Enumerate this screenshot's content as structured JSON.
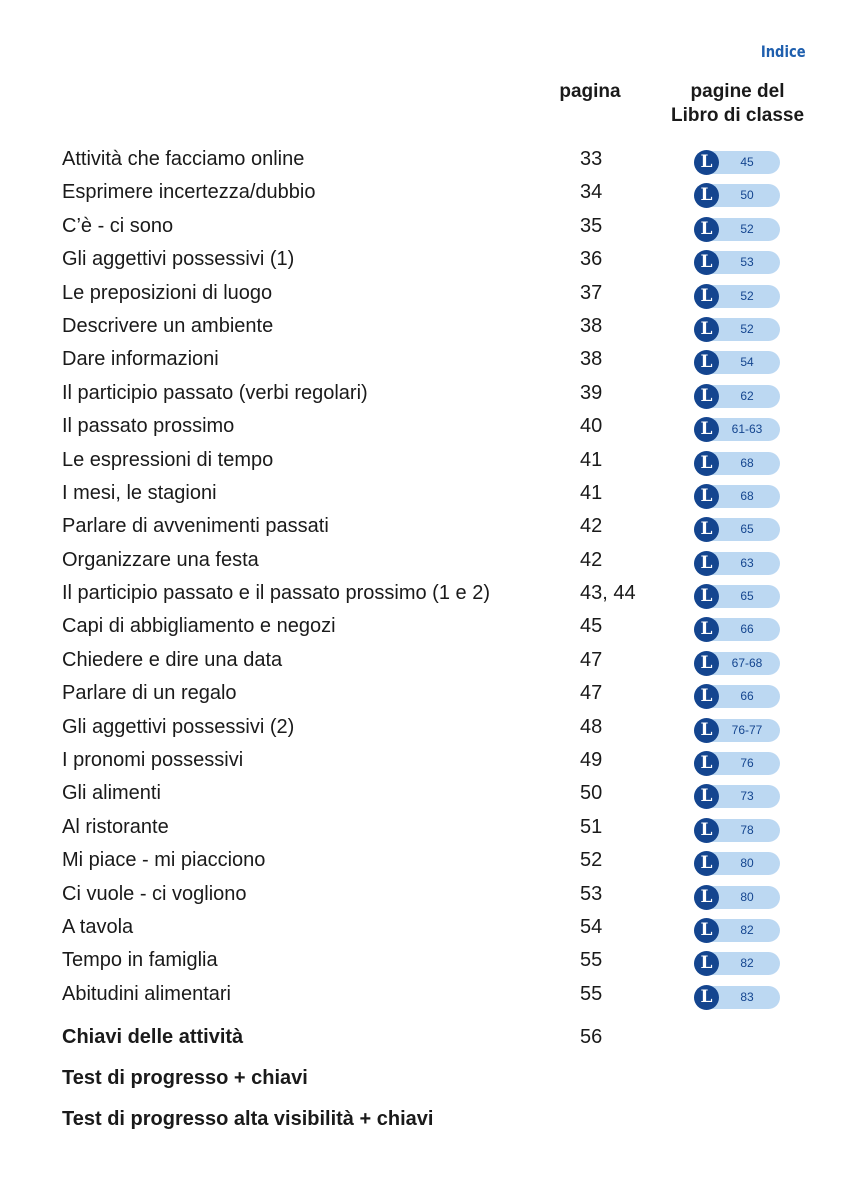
{
  "header": {
    "section_label": "Indice",
    "col_pagina": "pagina",
    "col_libro_line1": "pagine del",
    "col_libro_line2": "Libro di classe",
    "logo_letter": "L"
  },
  "entries": [
    {
      "title": "Attività che facciamo online",
      "page": "33",
      "libro": "45"
    },
    {
      "title": "Esprimere incertezza/dubbio",
      "page": "34",
      "libro": "50"
    },
    {
      "title": "C’è - ci sono",
      "page": "35",
      "libro": "52"
    },
    {
      "title": "Gli aggettivi possessivi (1)",
      "page": "36",
      "libro": "53"
    },
    {
      "title": "Le preposizioni di luogo",
      "page": "37",
      "libro": "52"
    },
    {
      "title": "Descrivere un ambiente",
      "page": "38",
      "libro": "52"
    },
    {
      "title": "Dare informazioni",
      "page": "38",
      "libro": "54"
    },
    {
      "title": "Il participio passato (verbi regolari)",
      "page": "39",
      "libro": "62"
    },
    {
      "title": "Il passato prossimo",
      "page": "40",
      "libro": "61-63"
    },
    {
      "title": "Le espressioni di tempo",
      "page": "41",
      "libro": "68"
    },
    {
      "title": "I mesi, le stagioni",
      "page": "41",
      "libro": "68"
    },
    {
      "title": "Parlare di avvenimenti passati",
      "page": "42",
      "libro": "65"
    },
    {
      "title": "Organizzare una festa",
      "page": "42",
      "libro": "63"
    },
    {
      "title": "Il participio passato e il passato prossimo (1 e 2)",
      "page": "43, 44",
      "libro": "65"
    },
    {
      "title": "Capi di abbigliamento e negozi",
      "page": "45",
      "libro": "66"
    },
    {
      "title": "Chiedere e dire una data",
      "page": "47",
      "libro": "67-68"
    },
    {
      "title": "Parlare di un regalo",
      "page": "47",
      "libro": "66"
    },
    {
      "title": "Gli aggettivi possessivi (2)",
      "page": "48",
      "libro": "76-77"
    },
    {
      "title": "I pronomi possessivi",
      "page": "49",
      "libro": "76"
    },
    {
      "title": "Gli alimenti",
      "page": "50",
      "libro": "73"
    },
    {
      "title": "Al ristorante",
      "page": "51",
      "libro": "78"
    },
    {
      "title": "Mi piace - mi piacciono",
      "page": "52",
      "libro": "80"
    },
    {
      "title": "Ci vuole - ci vogliono",
      "page": "53",
      "libro": "80"
    },
    {
      "title": "A tavola",
      "page": "54",
      "libro": "82"
    },
    {
      "title": "Tempo in famiglia",
      "page": "55",
      "libro": "82"
    },
    {
      "title": "Abitudini alimentari",
      "page": "55",
      "libro": "83"
    }
  ],
  "appendix": [
    {
      "title": "Chiavi delle attività",
      "page": "56"
    },
    {
      "title": "Test di progresso + chiavi",
      "page": ""
    },
    {
      "title": "Test di progresso alta visibilità + chiavi",
      "page": ""
    }
  ],
  "colors": {
    "accent": "#1f5fae",
    "pill": "#bcd8f2",
    "logo": "#14458f"
  }
}
